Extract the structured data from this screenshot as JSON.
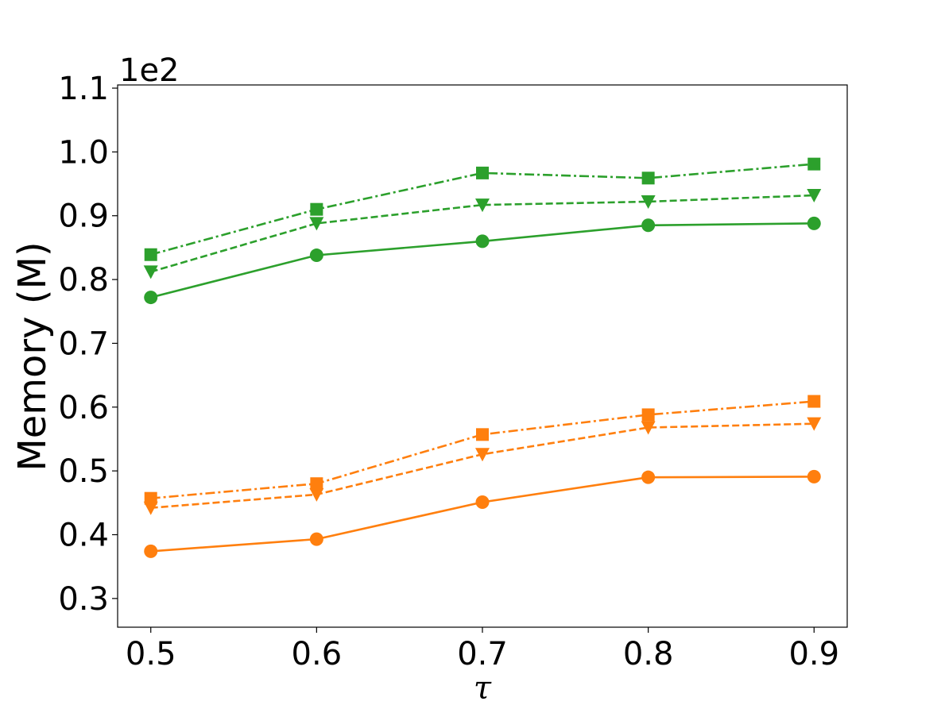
{
  "chart_data": {
    "type": "line",
    "title": "",
    "xlabel": "τ",
    "ylabel": "Memory (M)",
    "y_offset_text": "1e2",
    "x": [
      0.5,
      0.6,
      0.7,
      0.8,
      0.9
    ],
    "x_tick_labels": [
      "0.5",
      "0.6",
      "0.7",
      "0.8",
      "0.9"
    ],
    "xlim": [
      0.48,
      0.92
    ],
    "ylim": [
      0.255,
      1.105
    ],
    "y_ticks": [
      0.3,
      0.4,
      0.5,
      0.6,
      0.7,
      0.8,
      0.9,
      1.0,
      1.1
    ],
    "y_tick_labels": [
      "0.3",
      "0.4",
      "0.5",
      "0.6",
      "0.7",
      "0.8",
      "0.9",
      "1.0",
      "1.1"
    ],
    "grid": false,
    "legend": "none",
    "series": [
      {
        "name": "green-solid-circle",
        "color": "#2ca02c",
        "linestyle": "solid",
        "marker": "circle",
        "values": [
          0.772,
          0.838,
          0.86,
          0.885,
          0.888
        ]
      },
      {
        "name": "green-dashed-triangle",
        "color": "#2ca02c",
        "linestyle": "dashed",
        "marker": "triangle-down",
        "values": [
          0.812,
          0.888,
          0.917,
          0.922,
          0.932
        ]
      },
      {
        "name": "green-dashdot-square",
        "color": "#2ca02c",
        "linestyle": "dashdot",
        "marker": "square",
        "values": [
          0.839,
          0.91,
          0.967,
          0.959,
          0.981
        ]
      },
      {
        "name": "orange-solid-circle",
        "color": "#ff7f0e",
        "linestyle": "solid",
        "marker": "circle",
        "values": [
          0.374,
          0.393,
          0.451,
          0.49,
          0.491
        ]
      },
      {
        "name": "orange-dashed-triangle",
        "color": "#ff7f0e",
        "linestyle": "dashed",
        "marker": "triangle-down",
        "values": [
          0.442,
          0.463,
          0.526,
          0.568,
          0.574
        ]
      },
      {
        "name": "orange-dashdot-square",
        "color": "#ff7f0e",
        "linestyle": "dashdot",
        "marker": "square",
        "values": [
          0.457,
          0.48,
          0.557,
          0.588,
          0.609
        ]
      }
    ]
  }
}
